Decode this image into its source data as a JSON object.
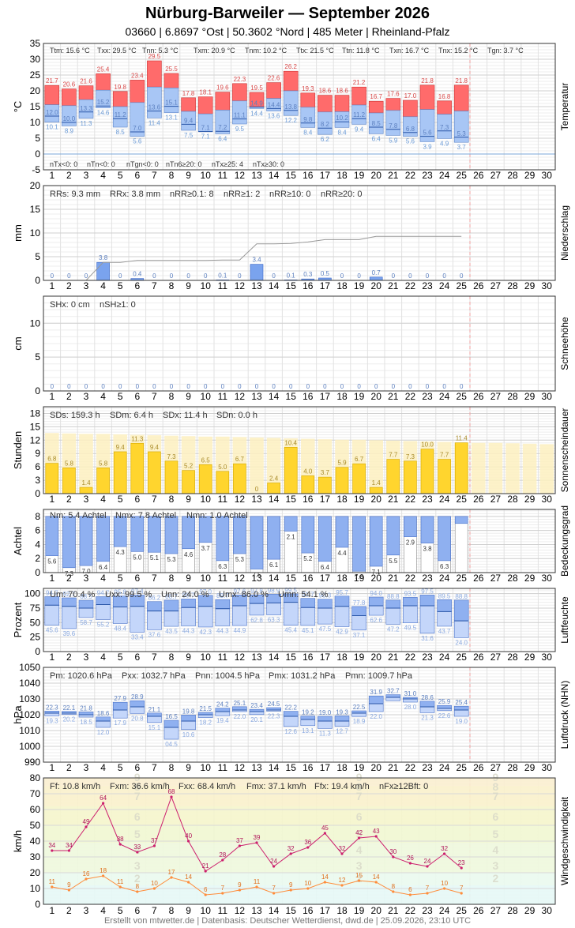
{
  "header": {
    "title": "Nürburg-Barweiler  —  September 2026",
    "subtitle": "03660  |  6.8697 °Ost  |  50.3602 °Nord  |  485 Meter  |  Rheinland-Pfalz"
  },
  "footer": "Erstellt von mtwetter.de | Datenbasis: Deutscher Wetterdienst, dwd.de | 25.09.2026, 23:10 UTC",
  "chart_data": [
    {
      "id": "temp",
      "type": "bar",
      "side_label": "Temperatur",
      "ylabel": "°C",
      "ylim": [
        -5,
        35
      ],
      "yticks": [
        -5,
        0,
        5,
        10,
        15,
        20,
        25,
        30,
        35
      ],
      "days": [
        1,
        2,
        3,
        4,
        5,
        6,
        7,
        8,
        9,
        10,
        11,
        12,
        13,
        14,
        15,
        16,
        17,
        18,
        19,
        20,
        21,
        22,
        23,
        24,
        25,
        26,
        27,
        28,
        29,
        30
      ],
      "tmax": [
        21.7,
        20.6,
        21.6,
        25.4,
        19.8,
        23.4,
        29.5,
        25.5,
        17.8,
        18.1,
        19.6,
        22.3,
        19.5,
        22.6,
        26.2,
        19.3,
        18.6,
        18.6,
        21.2,
        16.7,
        17.6,
        17.0,
        21.8,
        16.8,
        21.8
      ],
      "tavg": [
        15.6,
        15.3,
        17.2,
        20.2,
        15.0,
        16.3,
        21.2,
        20.9,
        13.5,
        12.7,
        13.9,
        16.8,
        14.8,
        17.6,
        20.0,
        14.8,
        13.3,
        13.4,
        15.5,
        13.0,
        13.8,
        11.8,
        14.1,
        12.6,
        13.6
      ],
      "tmin": [
        10.1,
        8.9,
        11.3,
        14.6,
        8.5,
        5.6,
        11.4,
        13.1,
        7.5,
        7.1,
        6.4,
        9.5,
        14.4,
        13.6,
        12.2,
        8.4,
        6.2,
        8.4,
        9.4,
        6.4,
        5.9,
        5.6,
        3.9,
        4.9,
        3.7
      ],
      "label_avg": [
        12.0,
        10.0,
        13.3,
        15.2,
        11.2,
        7.0,
        13.6,
        15.1,
        9.4,
        7.1,
        7.2,
        11.1,
        14.9,
        14.4,
        13.8,
        9.8,
        8.2,
        10.2,
        11.2,
        8.5,
        7.8,
        6.8,
        5.6,
        7.3,
        5.3
      ],
      "stats_top": [
        "Ttm: 15.6 °C",
        "Txx: 29.5 °C",
        "Tnn: 5.3 °C",
        "Txm: 20.9 °C",
        "Tnm: 10.2 °C",
        "Ttx: 21.5 °C",
        "Ttn: 11.8 °C",
        "Txn: 16.7 °C",
        "Tnx: 15.2 °C",
        "Tgn: 3.7 °C"
      ],
      "stats_bottom": [
        "nTx<0: 0",
        "nTn<0: 0",
        "nTgn<0: 0",
        "nTn6≥20: 0",
        "nTx≥25: 4",
        "nTx≥30: 0"
      ]
    },
    {
      "id": "rain",
      "type": "bar",
      "side_label": "Niederschlag",
      "ylabel": "mm",
      "ylim": [
        0,
        20
      ],
      "yticks": [
        0,
        5,
        10,
        15,
        20
      ],
      "values": [
        0,
        0,
        0,
        3.8,
        0,
        0.4,
        0,
        0,
        0,
        0,
        0.1,
        0,
        3.4,
        0,
        0.1,
        0.3,
        0.5,
        0,
        0,
        0.7,
        0,
        0,
        0,
        0,
        0
      ],
      "value_labels": [
        "0",
        "0",
        "0",
        "3.8",
        "0",
        "0.4",
        "0",
        "0",
        "0",
        "0",
        "0.1",
        "0",
        "3.4",
        "0",
        "0.1",
        "0.3",
        "0.5",
        "0",
        "0",
        "0.7",
        "0",
        "0",
        "0",
        "0",
        "0"
      ],
      "cumulative": [
        0,
        0,
        0,
        3.8,
        3.8,
        4.2,
        4.2,
        4.2,
        4.2,
        4.2,
        4.3,
        4.3,
        7.7,
        7.7,
        7.8,
        8.1,
        8.6,
        8.6,
        8.6,
        9.3,
        9.3,
        9.3,
        9.3,
        9.3,
        9.3
      ],
      "stats": [
        "RRs: 9.3 mm",
        "RRx: 3.8 mm",
        "nRR≥0.1: 8",
        "nRR≥1: 2",
        "nRR≥10: 0",
        "nRR≥20: 0"
      ]
    },
    {
      "id": "snow",
      "type": "bar",
      "side_label": "Schneehöhe",
      "ylabel": "cm",
      "ylim": [
        0,
        14
      ],
      "yticks": [
        0,
        5,
        10
      ],
      "values": [
        0,
        0,
        0,
        0,
        0,
        0,
        0,
        0,
        0,
        0,
        0,
        0,
        0,
        0,
        0,
        0,
        0,
        0,
        0,
        0,
        0,
        0,
        0,
        0,
        0
      ],
      "stats": [
        "SHx: 0 cm",
        "nSH≥1: 0"
      ]
    },
    {
      "id": "sun",
      "type": "bar",
      "side_label": "Sonnenscheindauer",
      "ylabel": "Stunden",
      "ylim": [
        0,
        19.5
      ],
      "yticks": [
        0,
        3,
        6,
        9,
        12,
        15,
        18
      ],
      "values": [
        6.8,
        5.8,
        1.4,
        5.8,
        9.4,
        11.3,
        9.4,
        7.3,
        5.2,
        6.5,
        5.0,
        6.7,
        0,
        2.4,
        10.4,
        4.0,
        3.7,
        5.9,
        6.7,
        1.4,
        7.7,
        7.3,
        10.0,
        7.7,
        11.4
      ],
      "value_labels": [
        "6.8",
        "5.8",
        "1.4",
        "5.8",
        "9.4",
        "11.3",
        "9.4",
        "7.3",
        "5.2",
        "6.5",
        "5.0",
        "6.7",
        "0",
        "2.4",
        "10.4",
        "4.0",
        "3.7",
        "5.9",
        "6.7",
        "1.4",
        "7.7",
        "7.3",
        "10.0",
        "7.7",
        "11.4"
      ],
      "daylength": [
        13.6,
        13.5,
        13.4,
        13.4,
        13.3,
        13.2,
        13.1,
        13.0,
        12.9,
        12.8,
        12.8,
        12.7,
        12.6,
        12.5,
        12.4,
        12.3,
        12.2,
        12.1,
        12.1,
        12.0,
        11.9,
        11.8,
        11.7,
        11.6,
        11.5,
        11.4,
        11.4,
        11.3,
        11.2,
        11.1
      ],
      "stats": [
        "SDs: 159.3 h",
        "SDm: 6.4 h",
        "SDx: 11.4 h",
        "SDn: 0.0 h"
      ]
    },
    {
      "id": "cloud",
      "type": "bar",
      "side_label": "Bedeckungsgrad",
      "ylabel": "Achtel",
      "ylim": [
        0,
        9
      ],
      "yticks": [
        0,
        2,
        4,
        6,
        8
      ],
      "values": [
        5.6,
        7.3,
        7.0,
        6.4,
        4.3,
        5.0,
        5.1,
        5.3,
        4.6,
        3.7,
        6.3,
        5.3,
        7.5,
        6.1,
        2.1,
        5.2,
        6.4,
        4.4,
        7.8,
        7.1,
        5.5,
        2.9,
        3.8,
        6.3,
        1.0
      ],
      "value_labels": [
        "5.6",
        "7.3",
        "7.0",
        "6.4",
        "4.3",
        "5.0",
        "5.1",
        "5.3",
        "4.6",
        "3.7",
        "6.3",
        "5.3",
        "7.5",
        "6.1",
        "2.1",
        "5.2",
        "6.4",
        "4.4",
        "7.8",
        "7.1",
        "5.5",
        "2.9",
        "3.8",
        "6.3",
        "1.0"
      ],
      "stats": [
        "Nm: 5.4 Achtel",
        "Nmx: 7.8 Achtel",
        "Nmn: 1.0 Achtel"
      ]
    },
    {
      "id": "hum",
      "type": "bar",
      "side_label": "Luftfeuchte",
      "ylabel": "Prozent",
      "ylim": [
        0,
        109
      ],
      "yticks": [
        0,
        25,
        50,
        75,
        100
      ],
      "max": [
        94.7,
        92.7,
        88.5,
        94.7,
        95.8,
        97.4,
        86.2,
        88.7,
        90.7,
        97.0,
        89.7,
        97.6,
        97.8,
        98.9,
        99.5,
        91.7,
        90.3,
        95.7,
        77.8,
        94.0,
        88.8,
        93.5,
        97.5,
        89.5,
        88.8
      ],
      "mean": [
        80,
        78,
        75,
        81,
        77,
        78,
        70,
        70,
        76,
        78,
        74,
        79,
        83,
        84,
        85,
        76,
        75,
        78,
        62,
        79,
        75,
        79,
        79,
        69,
        53
      ],
      "min": [
        45.6,
        39.6,
        58.7,
        55.2,
        48.4,
        33.4,
        37.6,
        43.5,
        44.3,
        42.3,
        44.3,
        44.9,
        62.8,
        63.3,
        45.4,
        45.1,
        47.5,
        42.9,
        37.1,
        62.6,
        47.2,
        49.5,
        31.6,
        43.7,
        24.0
      ],
      "max_labels": [
        "94.7",
        "92.7",
        "88.5",
        "94.7",
        "95.8",
        "97.4",
        "86.2",
        "88.7",
        "90.7",
        "97.0",
        "89.7",
        "97.6",
        "97.8",
        "98.9",
        "99.5",
        "91.7",
        "90.3",
        "95.7",
        "77.8",
        "94.0",
        "88.8",
        "93.5",
        "97.5",
        "89.5",
        "88.8"
      ],
      "min_labels": [
        "45.6",
        "39.6",
        "58.7",
        "55.2",
        "48.4",
        "33.4",
        "37.6",
        "43.5",
        "44.3",
        "42.3",
        "44.3",
        "44.9",
        "62.8",
        "63.3",
        "45.4",
        "45.1",
        "47.5",
        "42.9",
        "37.1",
        "62.6",
        "47.2",
        "49.5",
        "31.6",
        "43.7",
        "24.0"
      ],
      "stats": [
        "Um: 70.4 %",
        "Uxx: 99.5 %",
        "Unn: 24.0 %",
        "Umx: 86.0 %",
        "Umn: 54.1 %"
      ]
    },
    {
      "id": "press",
      "type": "bar",
      "side_label": "Luftdruck (NHN)",
      "ylabel": "hPa",
      "ylim": [
        990,
        1050
      ],
      "yticks": [
        990,
        1000,
        1010,
        1020,
        1030,
        1040,
        1050
      ],
      "max": [
        1022.3,
        1022.1,
        1021.8,
        1018.6,
        1027.9,
        1028.9,
        1021.1,
        1016.5,
        1019.8,
        1021.5,
        1024.2,
        1025.1,
        1023.4,
        1024.5,
        1022.2,
        1019.2,
        1019.0,
        1019.3,
        1022.5,
        1031.9,
        1032.7,
        1031.0,
        1028.6,
        1025.9,
        1025.4
      ],
      "mean": [
        1021,
        1021,
        1020,
        1016,
        1023,
        1025,
        1019,
        1012,
        1016,
        1020,
        1022,
        1023,
        1022,
        1023,
        1019,
        1017,
        1016,
        1016,
        1021,
        1027,
        1031,
        1030,
        1025,
        1024,
        1023
      ],
      "min": [
        1019.3,
        1020.2,
        1018.5,
        1012.0,
        1017.9,
        1020.8,
        1015.1,
        1004.5,
        1010.6,
        1018.2,
        1019.4,
        1022.0,
        1020.1,
        1022.3,
        1012.6,
        1013.1,
        1011.3,
        1012.7,
        1018.9,
        1022.0,
        1028.9,
        1028.0,
        1021.3,
        1022.6,
        1019.0
      ],
      "max_labels": [
        "22.3",
        "22.1",
        "21.8",
        "18.6",
        "27.9",
        "28.9",
        "21.1",
        "16.5",
        "19.8",
        "21.5",
        "24.2",
        "25.1",
        "23.4",
        "24.5",
        "22.2",
        "19.2",
        "19.0",
        "19.3",
        "22.5",
        "31.9",
        "32.7",
        "31.0",
        "28.6",
        "25.9",
        "25.4"
      ],
      "min_labels": [
        "19.3",
        "20.2",
        "18.5",
        "12.0",
        "17.9",
        "20.8",
        "15.1",
        "04.5",
        "10.6",
        "18.2",
        "19.4",
        "22.0",
        "20.1",
        "22.3",
        "12.6",
        "13.1",
        "11.3",
        "12.7",
        "18.9",
        "22.0",
        "",
        "28.0",
        "21.3",
        "22.6",
        "19.0"
      ],
      "stats": [
        "Pm: 1020.6 hPa",
        "Pxx: 1032.7 hPa",
        "Pnn: 1004.5 hPa",
        "Pmx: 1031.2 hPa",
        "Pmn: 1009.7 hPa"
      ]
    },
    {
      "id": "wind",
      "type": "line",
      "side_label": "Windgeschwindigkeit",
      "ylabel": "km/h",
      "ylim": [
        0,
        80
      ],
      "yticks": [
        0,
        10,
        20,
        30,
        40,
        50,
        60,
        70,
        80
      ],
      "gust": [
        34,
        34,
        49,
        64,
        38,
        33,
        37,
        68,
        40,
        21,
        28,
        37,
        39,
        24,
        32,
        36,
        45,
        32,
        42,
        43,
        30,
        26,
        24,
        32,
        23
      ],
      "mean": [
        11,
        9,
        16,
        18,
        11,
        8,
        10,
        17,
        14,
        6,
        7,
        9,
        11,
        7,
        9,
        10,
        14,
        12,
        15,
        14,
        8,
        6,
        7,
        10,
        7
      ],
      "beaufort_labels": [
        "2",
        "3",
        "4",
        "5",
        "6",
        "7",
        "8",
        "9"
      ],
      "stats": [
        "Ff: 10.8 km/h",
        "Fxm: 36.6 km/h",
        "Fxx: 68.4 km/h",
        "Fmx: 37.1 km/h",
        "Ffx: 19.4 km/h",
        "nFx≥12Bft: 0"
      ]
    }
  ]
}
